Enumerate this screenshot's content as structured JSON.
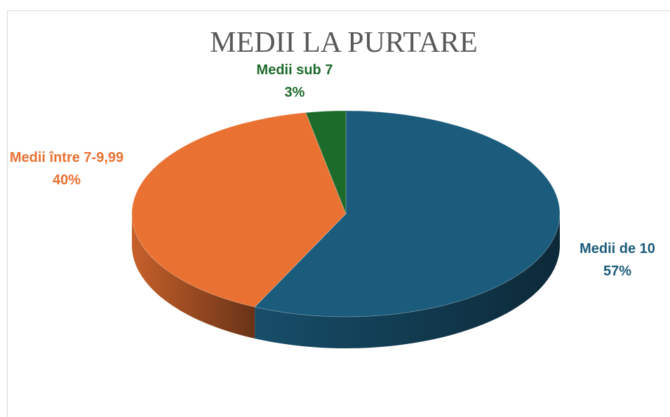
{
  "chart_data": {
    "type": "pie",
    "title": "MEDII LA PURTARE",
    "categories": [
      "Medii de 10",
      "Medii între 7-9,99",
      "Medii sub 7"
    ],
    "values": [
      57,
      40,
      3
    ],
    "value_labels": [
      "57%",
      "40%",
      "3%"
    ],
    "colors": [
      "#1b5b7c",
      "#e97132",
      "#1d6b2b"
    ]
  }
}
